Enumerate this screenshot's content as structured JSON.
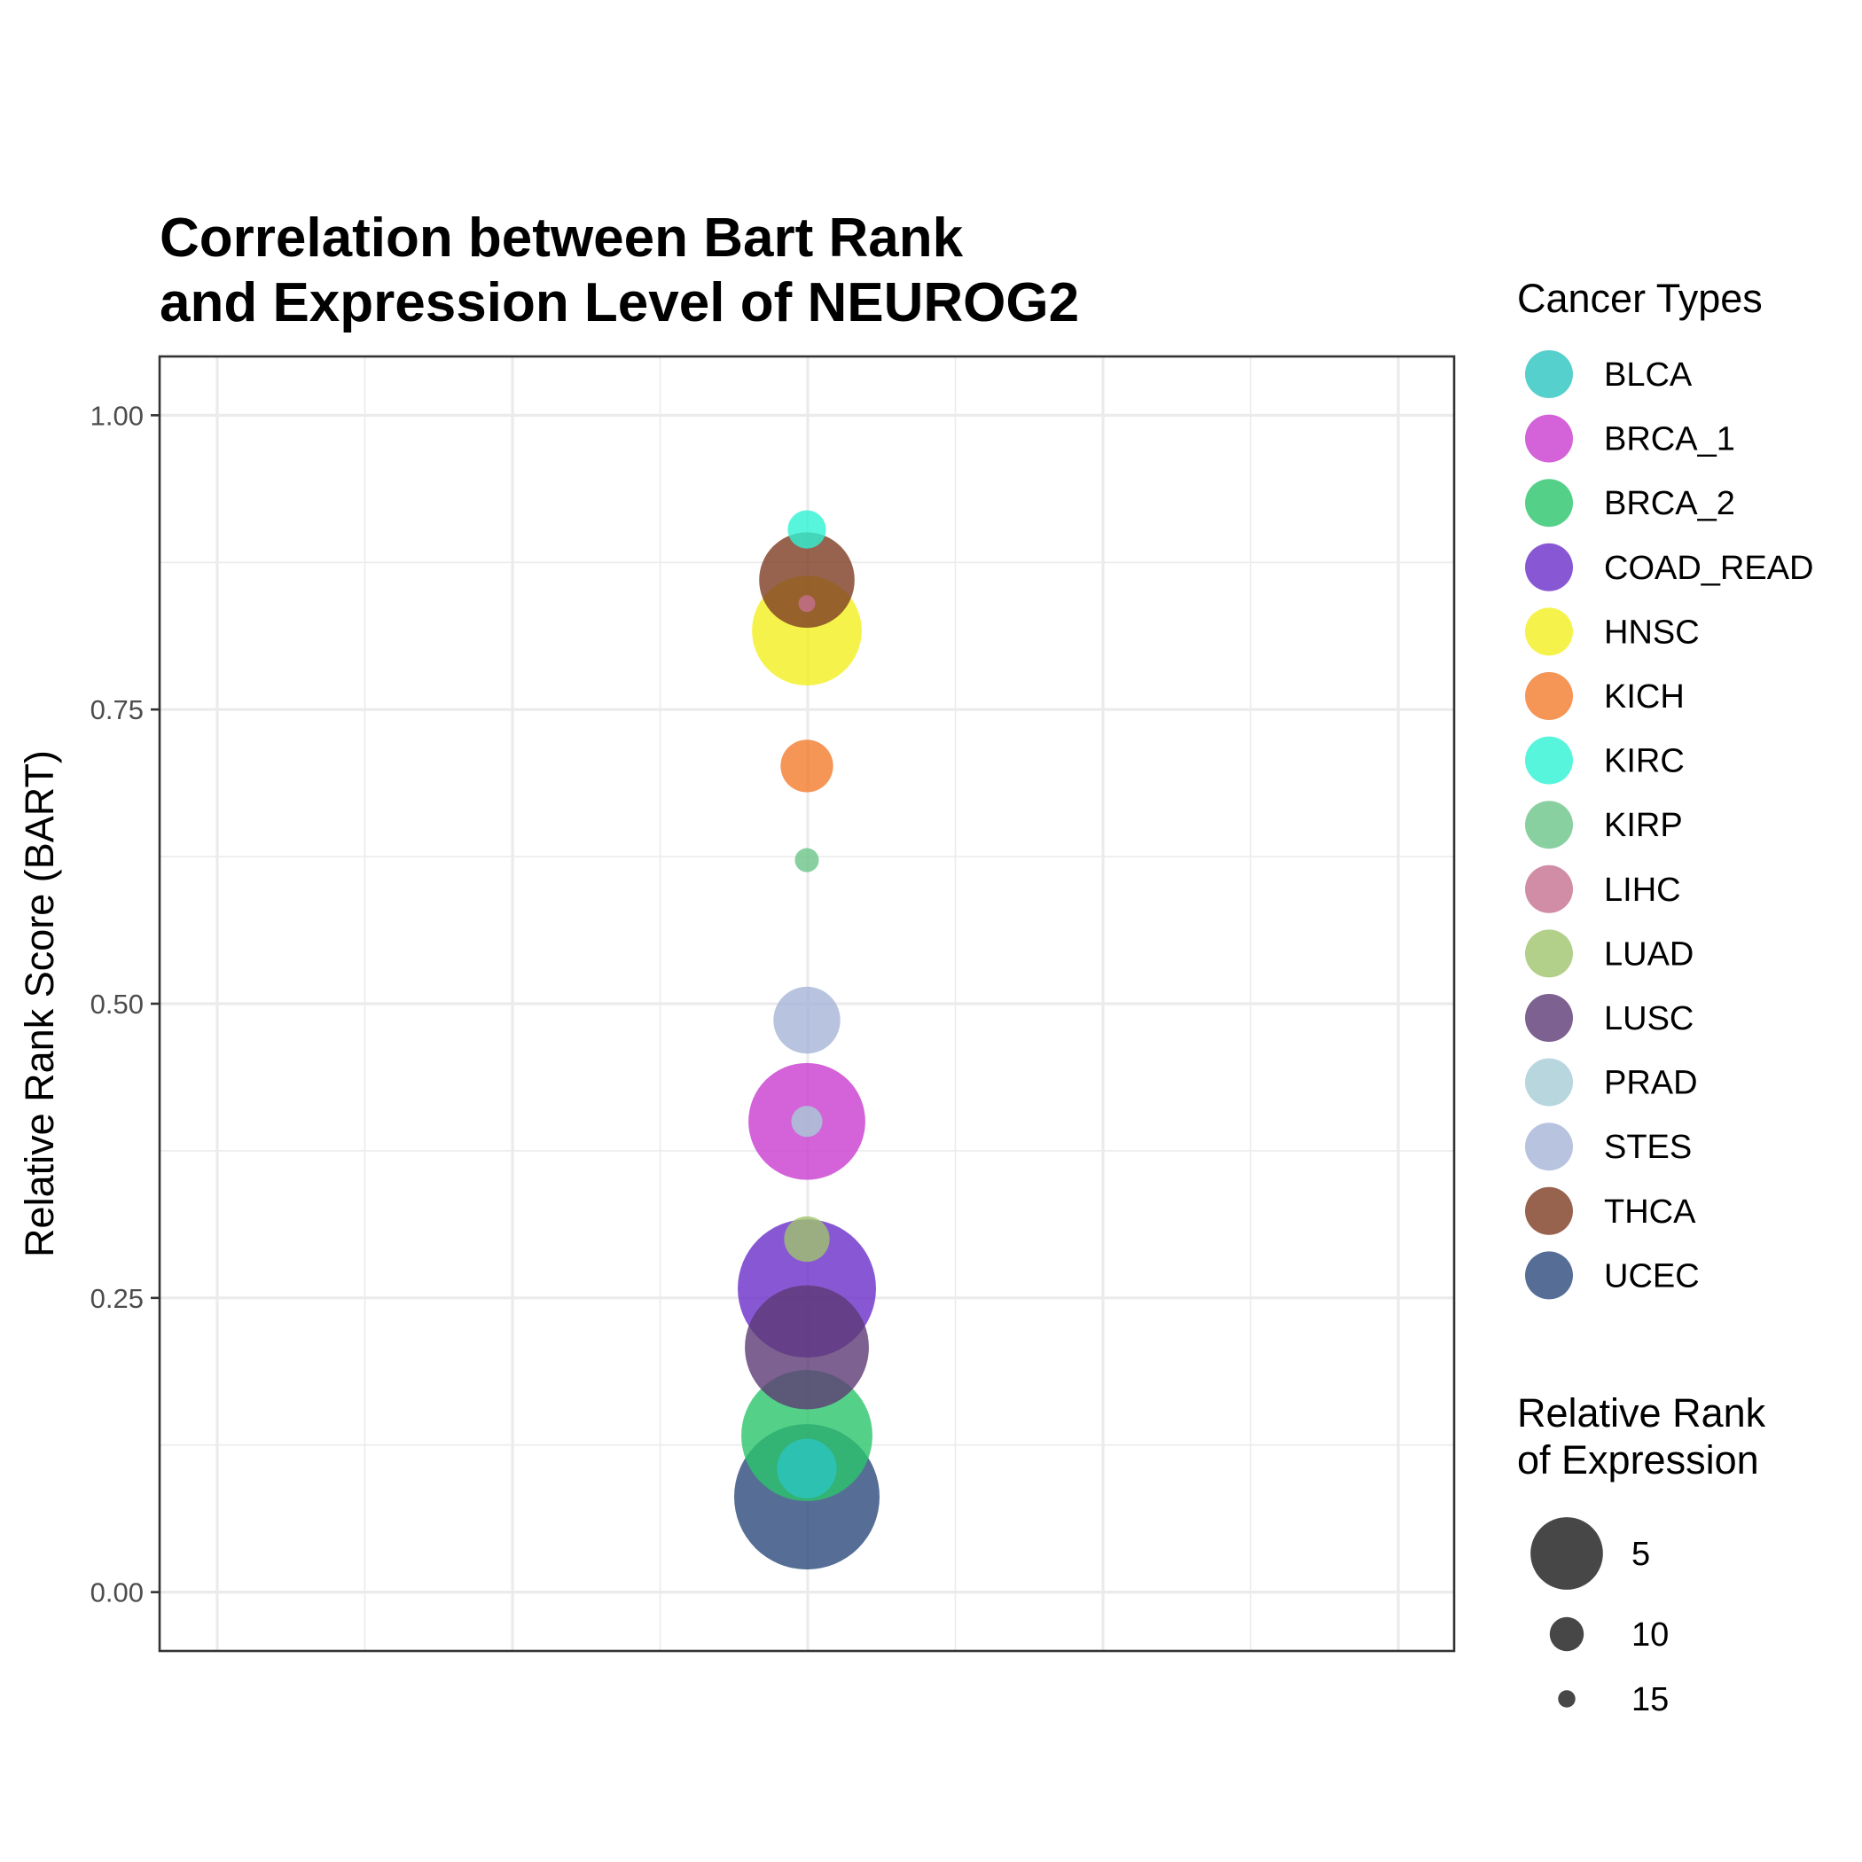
{
  "chart_data": {
    "type": "scatter",
    "title_lines": [
      "Correlation between Bart Rank",
      "and Expression Level of NEUROG2"
    ],
    "ylabel": "Relative Rank Score (BART)",
    "xlabel": "",
    "ylim": [
      -0.05,
      1.05
    ],
    "yticks": [
      "0.00",
      "0.25",
      "0.50",
      "0.75",
      "1.00"
    ],
    "ytick_values": [
      0.0,
      0.25,
      0.5,
      0.75,
      1.0
    ],
    "grid": true,
    "legend_position": "right",
    "color_legend_title": "Cancer Types",
    "size_legend_title_lines": [
      "Relative Rank",
      "of Expression"
    ],
    "size_legend": [
      {
        "label": "5",
        "value": 5
      },
      {
        "label": "10",
        "value": 10
      },
      {
        "label": "15",
        "value": 15
      }
    ],
    "series": [
      {
        "name": "BLCA",
        "color": "#2cc4c0",
        "y": 0.105,
        "expression_rank": 13
      },
      {
        "name": "BRCA_1",
        "color": "#c93cd0",
        "y": 0.4,
        "expression_rank": 5
      },
      {
        "name": "BRCA_2",
        "color": "#2bc46c",
        "y": 0.133,
        "expression_rank": 3
      },
      {
        "name": "COAD_READ",
        "color": "#6a2ec9",
        "y": 0.258,
        "expression_rank": 2
      },
      {
        "name": "HNSC",
        "color": "#f2f01e",
        "y": 0.817,
        "expression_rank": 6
      },
      {
        "name": "KICH",
        "color": "#f27a2c",
        "y": 0.702,
        "expression_rank": 14
      },
      {
        "name": "KIRC",
        "color": "#2ef2d4",
        "y": 0.903,
        "expression_rank": 16
      },
      {
        "name": "KIRP",
        "color": "#6cc48a",
        "y": 0.622,
        "expression_rank": 18
      },
      {
        "name": "LIHC",
        "color": "#c67090",
        "y": 0.84,
        "expression_rank": 19
      },
      {
        "name": "LUAD",
        "color": "#9fc46c",
        "y": 0.3,
        "expression_rank": 15
      },
      {
        "name": "LUSC",
        "color": "#5c3a74",
        "y": 0.208,
        "expression_rank": 4
      },
      {
        "name": "PRAD",
        "color": "#a6ccd6",
        "y": 0.4,
        "expression_rank": 17
      },
      {
        "name": "STES",
        "color": "#a6b4d8",
        "y": 0.486,
        "expression_rank": 12
      },
      {
        "name": "THCA",
        "color": "#7e3c22",
        "y": 0.86,
        "expression_rank": 8
      },
      {
        "name": "UCEC",
        "color": "#2c4a7c",
        "y": 0.081,
        "expression_rank": 1
      }
    ]
  }
}
